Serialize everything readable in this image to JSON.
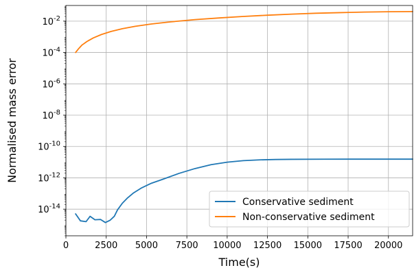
{
  "chart_data": {
    "type": "line",
    "title": "",
    "xlabel": "Time(s)",
    "ylabel": "Normalised mass error",
    "xlim": [
      0,
      21500
    ],
    "yscale": "log",
    "ylim": [
      2e-16,
      0.1
    ],
    "grid": true,
    "legend_position": "lower-right",
    "x_ticks": [
      0,
      2500,
      5000,
      7500,
      10000,
      12500,
      15000,
      17500,
      20000
    ],
    "x_tick_labels": [
      "0",
      "2500",
      "5000",
      "7500",
      "10000",
      "12500",
      "15000",
      "17500",
      "20000"
    ],
    "y_ticks": [
      1e-14,
      1e-12,
      1e-10,
      1e-08,
      1e-06,
      0.0001,
      0.01
    ],
    "y_tick_exponents": [
      "-14",
      "-12",
      "-10",
      "-8",
      "-6",
      "-4",
      "-2"
    ],
    "y_tick_base": "10",
    "series": [
      {
        "name": "Conservative sediment",
        "color": "#1f77b4",
        "x": [
          600,
          900,
          1250,
          1500,
          1800,
          2150,
          2450,
          2750,
          3000,
          3200,
          3500,
          3800,
          4200,
          4700,
          5300,
          6000,
          7000,
          8000,
          9000,
          10000,
          11000,
          12000,
          13000,
          14000,
          16000,
          18000,
          20000,
          21500
        ],
        "y": [
          5e-15,
          1.8e-15,
          1.6e-15,
          3.5e-15,
          2.1e-15,
          2.2e-15,
          1.4e-15,
          2e-15,
          3.5e-15,
          9e-15,
          2.4e-14,
          5e-14,
          1.1e-13,
          2.3e-13,
          4.5e-13,
          8e-13,
          1.9e-12,
          3.9e-12,
          6.9e-12,
          1e-11,
          1.25e-11,
          1.4e-11,
          1.48e-11,
          1.52e-11,
          1.55e-11,
          1.56e-11,
          1.56e-11,
          1.56e-11
        ]
      },
      {
        "name": "Non-conservative sediment",
        "color": "#ff7f0e",
        "x": [
          600,
          800,
          1000,
          1300,
          1700,
          2200,
          2800,
          3500,
          4300,
          5300,
          6500,
          8000,
          9500,
          11000,
          12500,
          14000,
          15500,
          17000,
          18500,
          20000,
          21500
        ],
        "y": [
          0.0001,
          0.00018,
          0.0003,
          0.0005,
          0.00085,
          0.0014,
          0.0022,
          0.0033,
          0.0047,
          0.0066,
          0.009,
          0.0125,
          0.016,
          0.02,
          0.024,
          0.028,
          0.032,
          0.035,
          0.038,
          0.04,
          0.041
        ]
      }
    ]
  }
}
